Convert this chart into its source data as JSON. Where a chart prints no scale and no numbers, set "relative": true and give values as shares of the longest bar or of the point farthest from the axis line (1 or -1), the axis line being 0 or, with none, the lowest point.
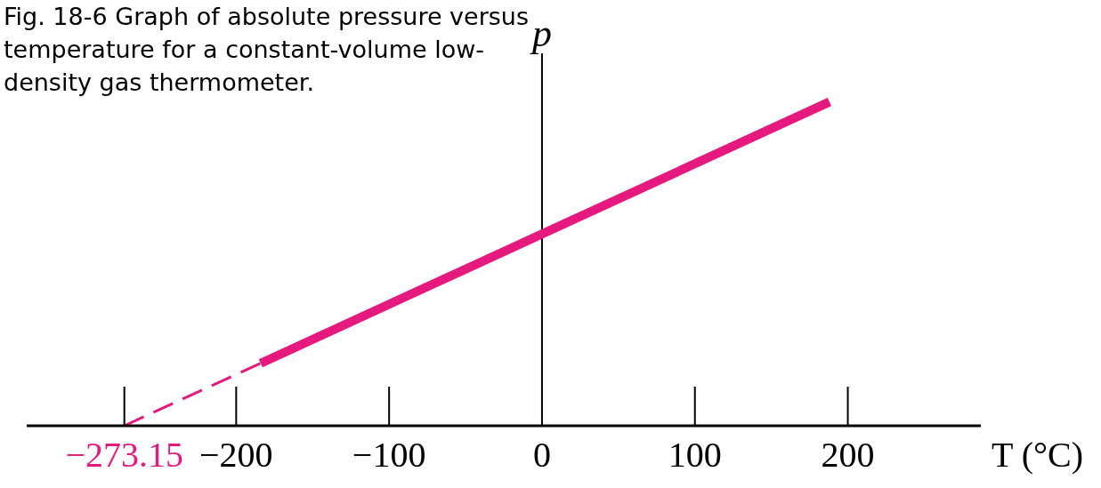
{
  "chart_data": {
    "type": "line",
    "title": "Fig. 18-6 Graph of absolute pressure versus temperature for a constant-volume low-density gas thermometer.",
    "xlabel": "T (°C)",
    "ylabel": "p",
    "relative": true,
    "xlim": [
      -337,
      287
    ],
    "xticks": [
      -273.15,
      -200,
      -100,
      0,
      100,
      200
    ],
    "series": [
      {
        "x": [
          -273.15,
          -184
        ],
        "values": [
          0,
          0.193
        ],
        "color": "#e6197f",
        "line_style": "dashed"
      },
      {
        "x": [
          -184,
          188
        ],
        "values": [
          0.193,
          1
        ],
        "color": "#e6197f",
        "line_style": "solid"
      }
    ]
  }
}
